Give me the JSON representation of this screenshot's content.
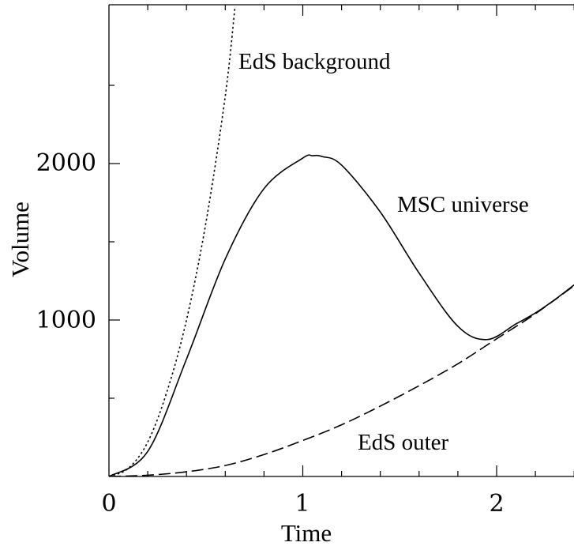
{
  "chart_data": {
    "type": "line",
    "xlabel": "Time",
    "ylabel": "Volume",
    "xlim": [
      0,
      2.4
    ],
    "ylim": [
      0,
      3000
    ],
    "x_ticks": [
      0,
      1,
      2
    ],
    "y_ticks": [
      1000,
      2000
    ],
    "x_tick_labels": [
      "0",
      "1",
      "2"
    ],
    "y_tick_labels": [
      "1000",
      "2000"
    ],
    "grid": false,
    "annotations": {
      "eds_background": "EdS background",
      "msc_universe": "MSC universe",
      "eds_outer": "EdS outer"
    },
    "series": [
      {
        "key": "eds_background",
        "style": "dotted",
        "x": [
          0,
          0.1,
          0.2,
          0.3,
          0.4,
          0.5,
          0.6,
          0.65
        ],
        "y": [
          0,
          52,
          220,
          545,
          1000,
          1620,
          2430,
          3000
        ]
      },
      {
        "key": "msc_universe",
        "style": "solid",
        "x": [
          0,
          0.2,
          0.4,
          0.6,
          0.8,
          1.0,
          1.05,
          1.1,
          1.2,
          1.4,
          1.6,
          1.8,
          1.95,
          2.1,
          2.2,
          2.3,
          2.4
        ],
        "y": [
          0,
          160,
          750,
          1390,
          1840,
          2035,
          2050,
          2045,
          1990,
          1690,
          1300,
          960,
          875,
          975,
          1045,
          1130,
          1225
        ]
      },
      {
        "key": "eds_outer",
        "style": "dashed",
        "x": [
          0,
          0.2,
          0.4,
          0.6,
          0.8,
          1.0,
          1.2,
          1.4,
          1.6,
          1.8,
          2.0,
          2.2,
          2.4
        ],
        "y": [
          0,
          8,
          30,
          70,
          140,
          230,
          330,
          450,
          580,
          720,
          880,
          1040,
          1220
        ]
      }
    ]
  }
}
